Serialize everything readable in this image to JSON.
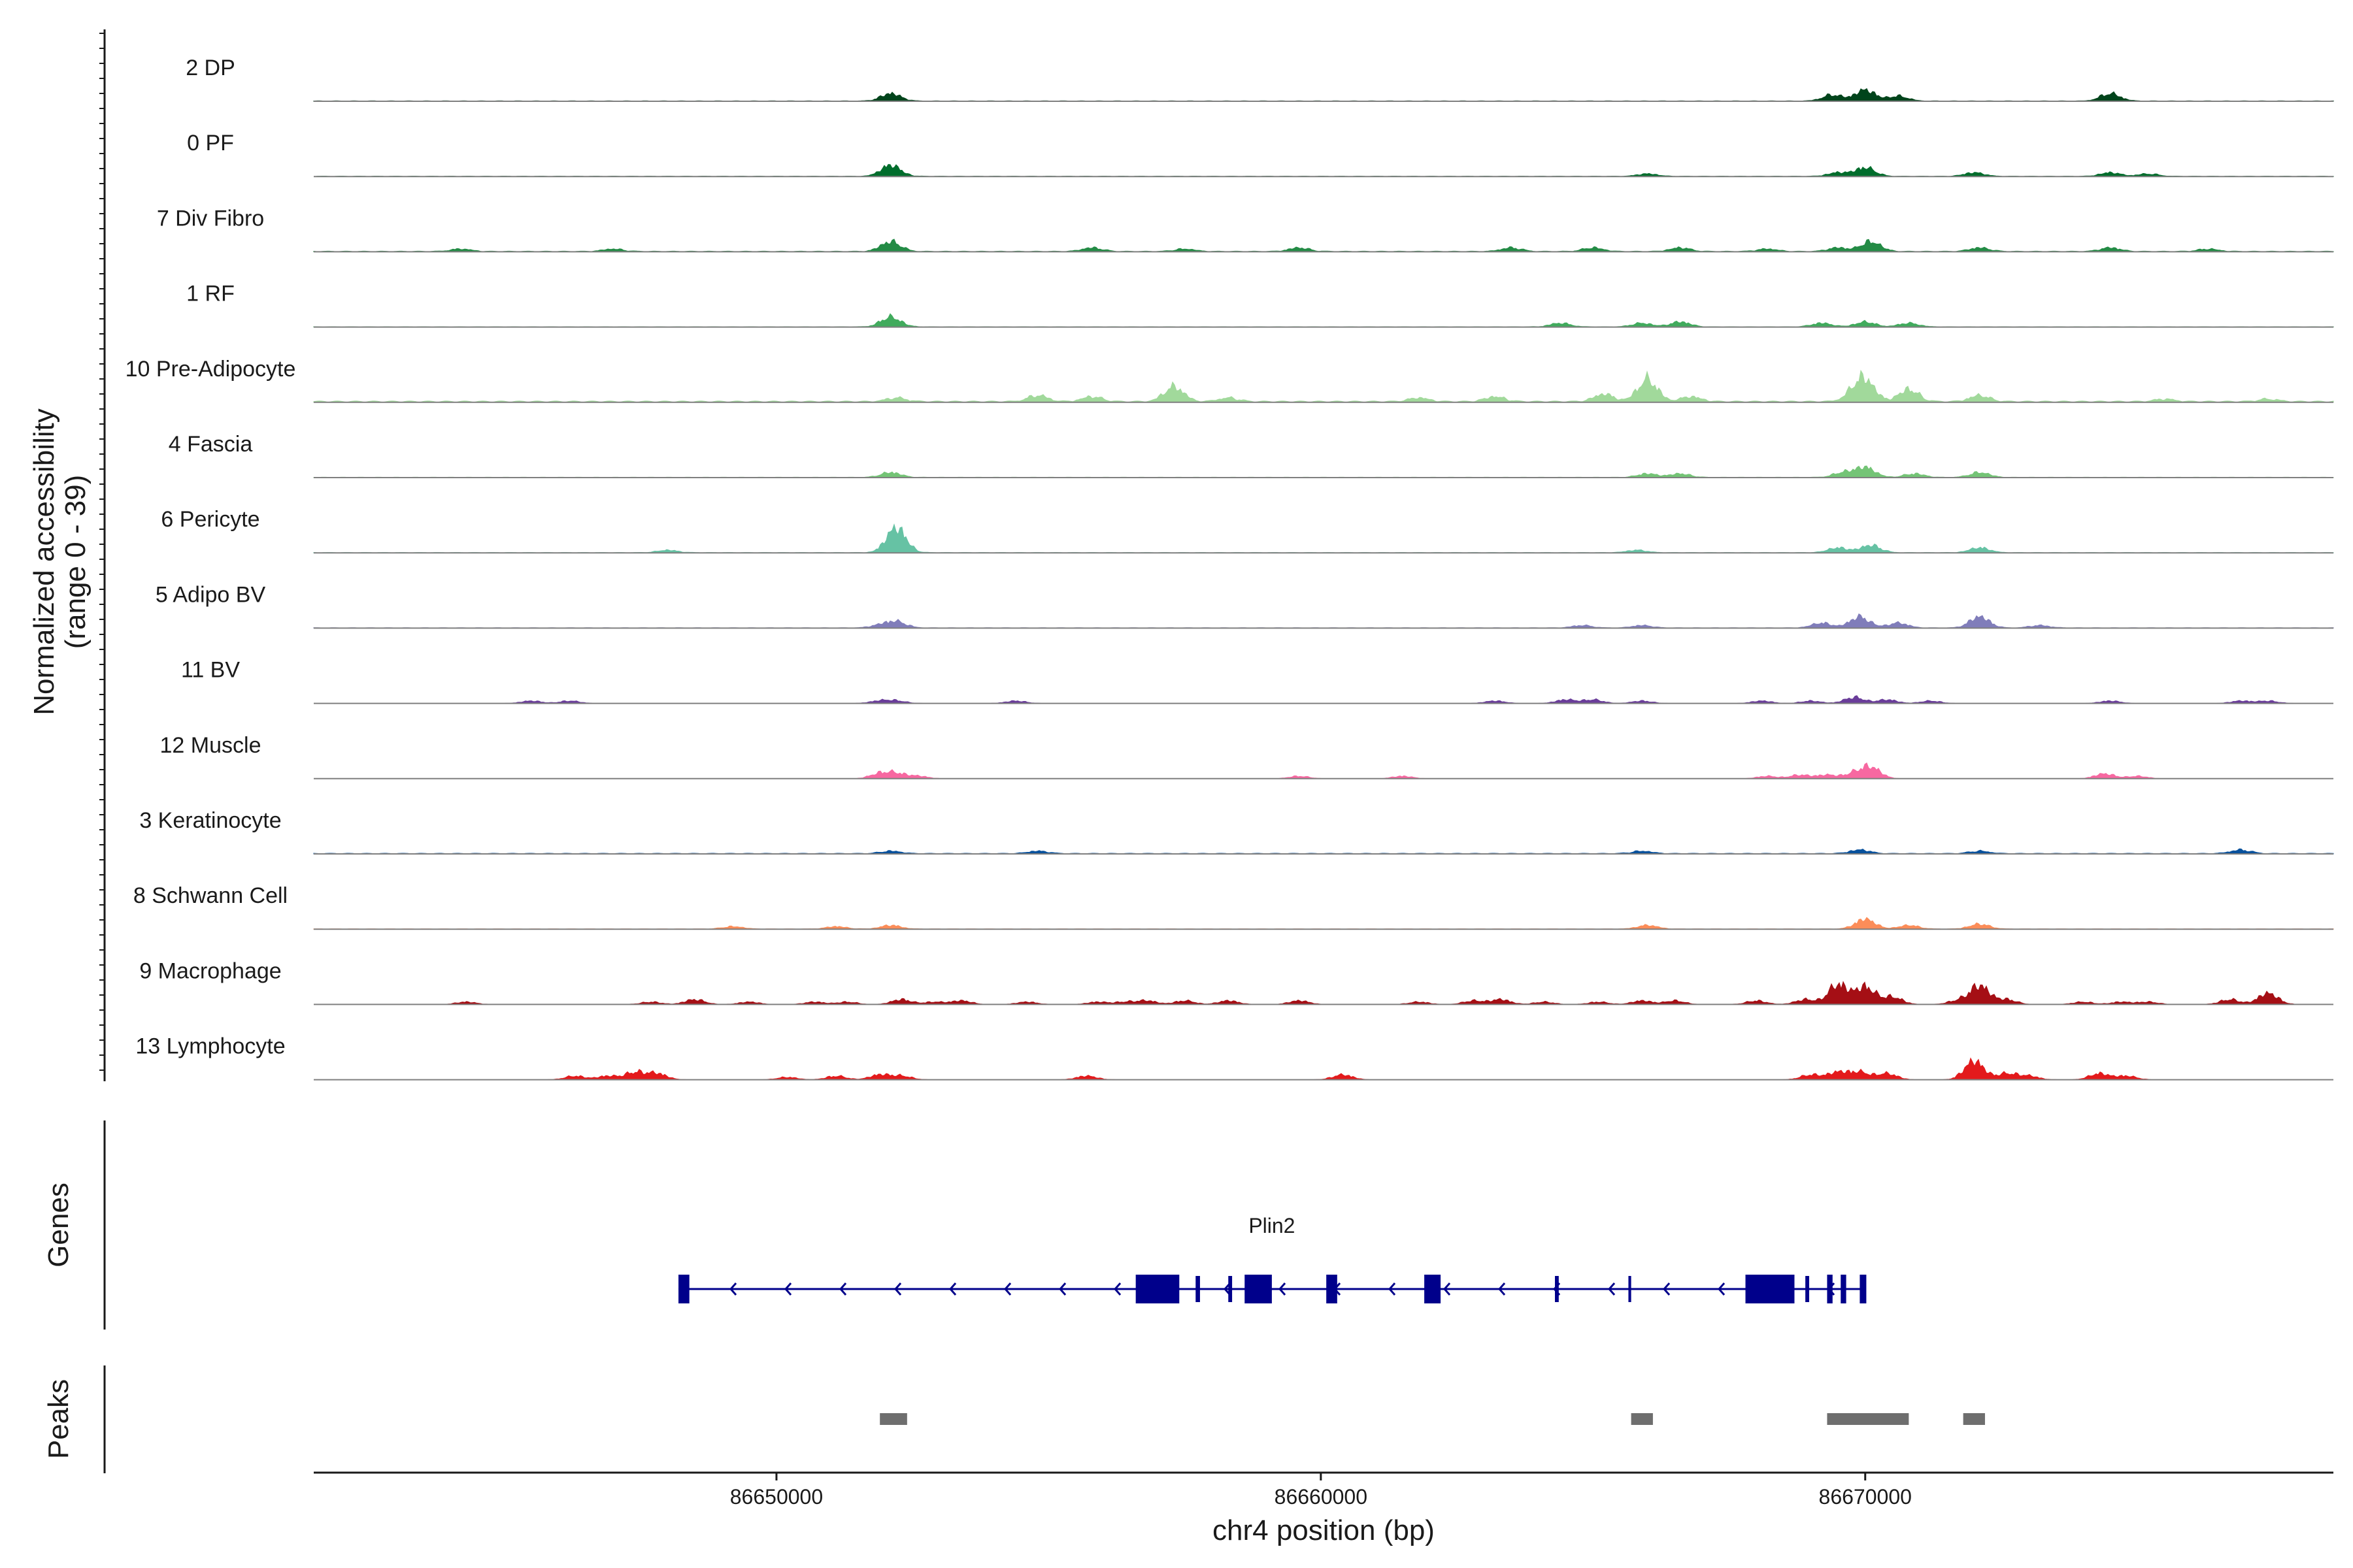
{
  "chart_data": {
    "type": "area",
    "xlabel": "chr4 position (bp)",
    "ylabel_line1": "Normalized accessibility",
    "ylabel_line2": "(range 0 - 39)",
    "y_range": [
      0,
      39
    ],
    "x_range": [
      86641500,
      86678600
    ],
    "x_ticks": [
      {
        "value": 86650000,
        "label": "86650000"
      },
      {
        "value": 86660000,
        "label": "86660000"
      },
      {
        "value": 86670000,
        "label": "86670000"
      }
    ],
    "genes_label": "Genes",
    "peaks_label": "Peaks",
    "series": [
      {
        "name": "2 DP",
        "color": "#00441b",
        "level": 0.28,
        "peaks": [
          [
            86652100,
            6
          ],
          [
            86669400,
            5
          ],
          [
            86670000,
            9
          ],
          [
            86670600,
            4
          ],
          [
            86674500,
            6
          ]
        ]
      },
      {
        "name": "0 PF",
        "color": "#006d2c",
        "level": 0.25,
        "peaks": [
          [
            86652100,
            9
          ],
          [
            86666000,
            2
          ],
          [
            86669500,
            3
          ],
          [
            86670000,
            7
          ],
          [
            86672000,
            3
          ],
          [
            86674500,
            3
          ],
          [
            86675200,
            2
          ]
        ]
      },
      {
        "name": "7 Div Fibro",
        "color": "#238b45",
        "level": 0.4,
        "peaks": [
          [
            86644200,
            2
          ],
          [
            86647000,
            2
          ],
          [
            86652100,
            8
          ],
          [
            86655800,
            3
          ],
          [
            86657500,
            2
          ],
          [
            86659600,
            3
          ],
          [
            86663500,
            3
          ],
          [
            86665000,
            3
          ],
          [
            86666600,
            3
          ],
          [
            86668200,
            2
          ],
          [
            86669500,
            3
          ],
          [
            86670100,
            8
          ],
          [
            86672100,
            3
          ],
          [
            86674500,
            3
          ],
          [
            86676300,
            2
          ]
        ]
      },
      {
        "name": "1 RF",
        "color": "#41ab5d",
        "level": 0.25,
        "peaks": [
          [
            86652100,
            8
          ],
          [
            86664400,
            3
          ],
          [
            86665900,
            3
          ],
          [
            86666600,
            4
          ],
          [
            86669200,
            3
          ],
          [
            86670000,
            4
          ],
          [
            86670800,
            3
          ]
        ]
      },
      {
        "name": "10 Pre-Adipocyte",
        "color": "#a1d99b",
        "level": 0.8,
        "peaks": [
          [
            86652200,
            3
          ],
          [
            86654800,
            5
          ],
          [
            86655800,
            4
          ],
          [
            86657300,
            12
          ],
          [
            86658300,
            3
          ],
          [
            86661800,
            3
          ],
          [
            86663200,
            4
          ],
          [
            86665200,
            6
          ],
          [
            86666000,
            18
          ],
          [
            86666800,
            4
          ],
          [
            86669800,
            6
          ],
          [
            86670000,
            16
          ],
          [
            86670800,
            10
          ],
          [
            86672100,
            5
          ],
          [
            86675500,
            2
          ],
          [
            86677400,
            2
          ]
        ]
      },
      {
        "name": "4 Fascia",
        "color": "#74c476",
        "level": 0.25,
        "peaks": [
          [
            86652100,
            4
          ],
          [
            86666000,
            3
          ],
          [
            86666600,
            3
          ],
          [
            86669600,
            4
          ],
          [
            86670000,
            8
          ],
          [
            86670900,
            3
          ],
          [
            86672100,
            4
          ]
        ]
      },
      {
        "name": "6 Pericyte",
        "color": "#66c2a4",
        "level": 0.25,
        "peaks": [
          [
            86648000,
            2
          ],
          [
            86652200,
            20
          ],
          [
            86665800,
            2
          ],
          [
            86669500,
            4
          ],
          [
            86670100,
            6
          ],
          [
            86672100,
            4
          ]
        ]
      },
      {
        "name": "5 Adipo BV",
        "color": "#807dba",
        "level": 0.25,
        "peaks": [
          [
            86651900,
            2
          ],
          [
            86652200,
            5
          ],
          [
            86664800,
            2
          ],
          [
            86665900,
            2
          ],
          [
            86669200,
            4
          ],
          [
            86669900,
            9
          ],
          [
            86670600,
            4
          ],
          [
            86672100,
            9
          ],
          [
            86673200,
            2
          ]
        ]
      },
      {
        "name": "11 BV",
        "color": "#6a3d9a",
        "level": 0.0,
        "peaks": [
          [
            86645500,
            2
          ],
          [
            86646200,
            2
          ],
          [
            86651900,
            2
          ],
          [
            86652200,
            2
          ],
          [
            86654400,
            2
          ],
          [
            86663200,
            2
          ],
          [
            86664500,
            3
          ],
          [
            86665000,
            3
          ],
          [
            86665900,
            2
          ],
          [
            86668100,
            2
          ],
          [
            86669000,
            2
          ],
          [
            86669800,
            5
          ],
          [
            86670400,
            3
          ],
          [
            86671200,
            2
          ],
          [
            86674500,
            2
          ],
          [
            86676900,
            2
          ],
          [
            86677400,
            2
          ]
        ]
      },
      {
        "name": "12 Muscle",
        "color": "#f768a1",
        "level": 0.0,
        "peaks": [
          [
            86651900,
            4
          ],
          [
            86652200,
            4
          ],
          [
            86652600,
            2
          ],
          [
            86659600,
            2
          ],
          [
            86661500,
            2
          ],
          [
            86668200,
            2
          ],
          [
            86668800,
            3
          ],
          [
            86669300,
            3
          ],
          [
            86669800,
            4
          ],
          [
            86670100,
            9
          ],
          [
            86674400,
            4
          ],
          [
            86675000,
            2
          ]
        ]
      },
      {
        "name": "3 Keratinocyte",
        "color": "#08519c",
        "level": 0.4,
        "peaks": [
          [
            86652100,
            2
          ],
          [
            86654800,
            2
          ],
          [
            86665900,
            2
          ],
          [
            86669900,
            3
          ],
          [
            86672100,
            2
          ],
          [
            86676900,
            3
          ]
        ]
      },
      {
        "name": "8 Schwann Cell",
        "color": "#fc8d59",
        "level": 0.2,
        "peaks": [
          [
            86649200,
            2
          ],
          [
            86651100,
            2
          ],
          [
            86652100,
            3
          ],
          [
            86666000,
            3
          ],
          [
            86670000,
            8
          ],
          [
            86670800,
            3
          ],
          [
            86672100,
            4
          ]
        ]
      },
      {
        "name": "9 Macrophage",
        "color": "#a50f15",
        "level": 0.0,
        "peaks": [
          [
            86644300,
            2
          ],
          [
            86647700,
            2
          ],
          [
            86648500,
            4
          ],
          [
            86649500,
            2
          ],
          [
            86650700,
            2
          ],
          [
            86651300,
            2
          ],
          [
            86652300,
            4
          ],
          [
            86652900,
            2
          ],
          [
            86653400,
            3
          ],
          [
            86654600,
            2
          ],
          [
            86655900,
            2
          ],
          [
            86656400,
            2
          ],
          [
            86656800,
            3
          ],
          [
            86657500,
            3
          ],
          [
            86658300,
            3
          ],
          [
            86659600,
            3
          ],
          [
            86661800,
            2
          ],
          [
            86662800,
            3
          ],
          [
            86663300,
            4
          ],
          [
            86664100,
            2
          ],
          [
            86665100,
            2
          ],
          [
            86665900,
            3
          ],
          [
            86666500,
            3
          ],
          [
            86668000,
            3
          ],
          [
            86668900,
            4
          ],
          [
            86669500,
            16
          ],
          [
            86670000,
            14
          ],
          [
            86670500,
            6
          ],
          [
            86671700,
            3
          ],
          [
            86672100,
            15
          ],
          [
            86672600,
            4
          ],
          [
            86674000,
            2
          ],
          [
            86674700,
            2
          ],
          [
            86675200,
            2
          ],
          [
            86676700,
            4
          ],
          [
            86677400,
            9
          ]
        ]
      },
      {
        "name": "13 Lymphocyte",
        "color": "#e31a1c",
        "level": 0.0,
        "peaks": [
          [
            86646300,
            3
          ],
          [
            86646900,
            3
          ],
          [
            86647400,
            6
          ],
          [
            86647800,
            5
          ],
          [
            86650200,
            2
          ],
          [
            86651100,
            3
          ],
          [
            86651900,
            4
          ],
          [
            86652300,
            3
          ],
          [
            86655700,
            3
          ],
          [
            86660400,
            4
          ],
          [
            86669000,
            4
          ],
          [
            86669500,
            6
          ],
          [
            86669900,
            6
          ],
          [
            86670400,
            5
          ],
          [
            86672000,
            15
          ],
          [
            86672600,
            5
          ],
          [
            86673000,
            3
          ],
          [
            86674300,
            5
          ],
          [
            86674800,
            3
          ]
        ]
      }
    ],
    "gene": {
      "name": "Plin2",
      "start": 86648200,
      "end": 86670000,
      "strand": "-",
      "exons": [
        {
          "start": 86648200,
          "end": 86648400,
          "h": "tall"
        },
        {
          "start": 86656600,
          "end": 86657400,
          "h": "tall"
        },
        {
          "start": 86657700,
          "end": 86657780,
          "h": "short"
        },
        {
          "start": 86658300,
          "end": 86658370,
          "h": "short"
        },
        {
          "start": 86658600,
          "end": 86659100,
          "h": "tall"
        },
        {
          "start": 86660100,
          "end": 86660300,
          "h": "tall"
        },
        {
          "start": 86661900,
          "end": 86662200,
          "h": "tall"
        },
        {
          "start": 86664300,
          "end": 86664370,
          "h": "short"
        },
        {
          "start": 86665650,
          "end": 86665700,
          "h": "short"
        },
        {
          "start": 86667800,
          "end": 86668700,
          "h": "tall"
        },
        {
          "start": 86668900,
          "end": 86668970,
          "h": "short"
        },
        {
          "start": 86669300,
          "end": 86669400,
          "h": "tall"
        },
        {
          "start": 86669550,
          "end": 86669650,
          "h": "tall"
        },
        {
          "start": 86669900,
          "end": 86670020,
          "h": "tall"
        }
      ]
    },
    "peak_regions": [
      [
        86651900,
        86652400
      ],
      [
        86665700,
        86666100
      ],
      [
        86669300,
        86670800
      ],
      [
        86671800,
        86672200
      ]
    ]
  }
}
